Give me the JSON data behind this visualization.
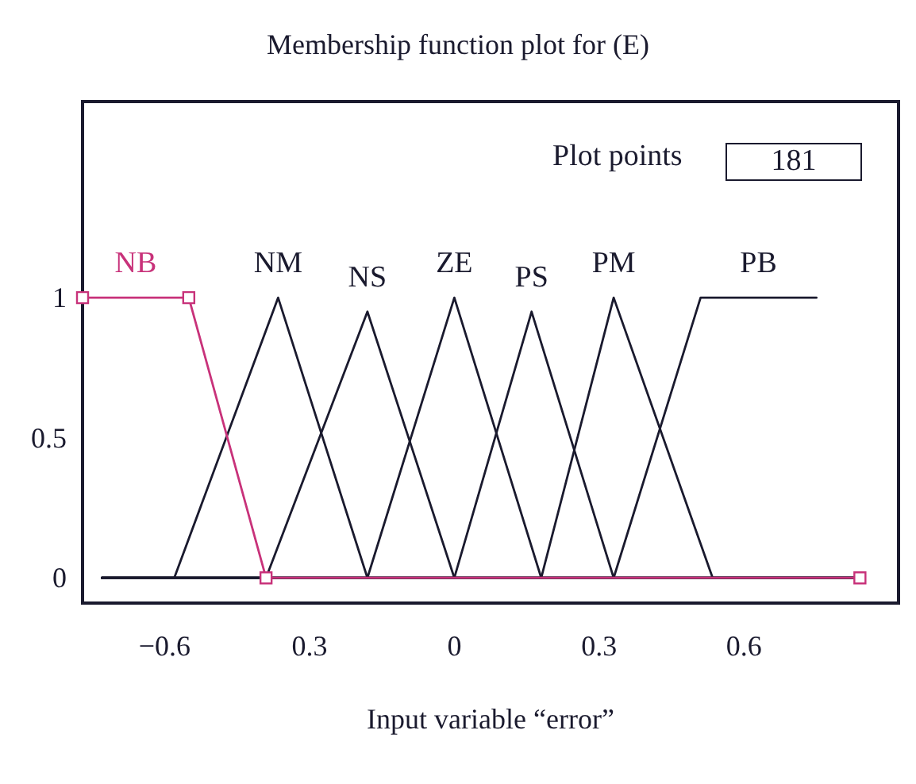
{
  "chart_data": {
    "type": "line",
    "title": "Membership function plot for (E)",
    "xlabel": "Input variable “error”",
    "annotations": [
      "Plot points",
      "181"
    ],
    "xlim": [
      -0.77,
      0.92
    ],
    "ylim": [
      -0.09,
      1.7
    ],
    "xticks": [
      -0.6,
      {
        "value": -0.3,
        "label": "0.3"
      },
      0,
      0.3,
      0.6
    ],
    "yticks": [
      0,
      0.5,
      1
    ],
    "grid": false,
    "legend": false,
    "marker": "none",
    "line_style": "solid",
    "series": [
      {
        "name": "NM",
        "color": "#1a1a2e",
        "x": [
          -0.73,
          -0.58,
          -0.365,
          -0.18,
          0.84
        ],
        "values": [
          0,
          0,
          1,
          0,
          0
        ]
      },
      {
        "name": "NS",
        "color": "#1a1a2e",
        "x": [
          -0.73,
          -0.39,
          -0.18,
          0,
          0.84
        ],
        "values": [
          0,
          0,
          0.95,
          0,
          0
        ]
      },
      {
        "name": "ZE",
        "color": "#1a1a2e",
        "x": [
          -0.73,
          -0.18,
          0,
          0.18,
          0.84
        ],
        "values": [
          0,
          0,
          1,
          0,
          0
        ]
      },
      {
        "name": "PS",
        "color": "#1a1a2e",
        "x": [
          -0.73,
          0,
          0.16,
          0.33,
          0.84
        ],
        "values": [
          0,
          0,
          0.95,
          0,
          0
        ]
      },
      {
        "name": "PM",
        "color": "#1a1a2e",
        "x": [
          -0.73,
          0.18,
          0.33,
          0.535,
          0.84
        ],
        "values": [
          0,
          0,
          1,
          0,
          0
        ]
      },
      {
        "name": "PB",
        "color": "#1a1a2e",
        "x": [
          -0.73,
          0.33,
          0.51,
          0.75
        ],
        "values": [
          0,
          0,
          1,
          1
        ]
      },
      {
        "name": "NB",
        "color": "#c8327a",
        "marker": "square",
        "x": [
          -0.77,
          -0.55,
          -0.39,
          0.84
        ],
        "values": [
          1,
          1,
          0,
          0
        ]
      }
    ]
  }
}
